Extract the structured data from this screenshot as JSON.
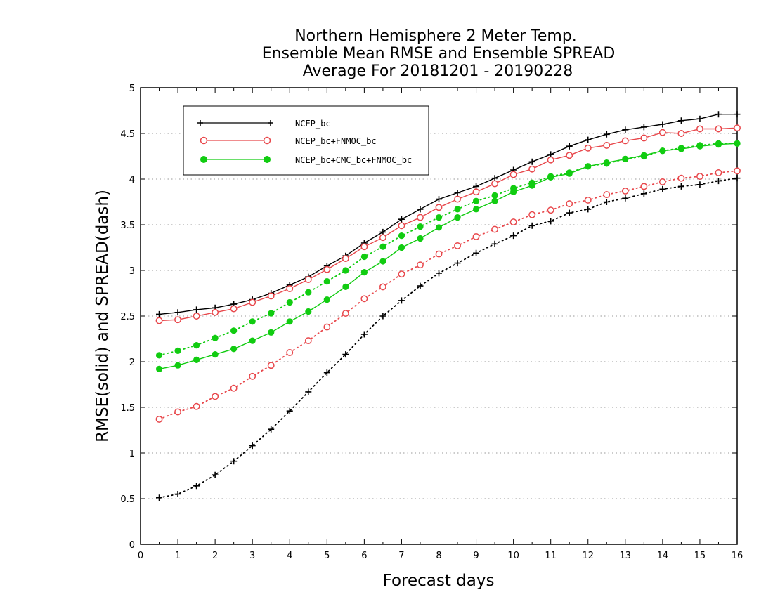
{
  "chart_data": {
    "type": "line",
    "title_lines": [
      "Northern Hemisphere 2 Meter Temp.",
      "Ensemble Mean RMSE and Ensemble SPREAD",
      "Average For 20181201 - 20190228"
    ],
    "xlabel": "Forecast days",
    "ylabel": "RMSE(solid) and SPREAD(dash)",
    "xlim": [
      0,
      16
    ],
    "ylim": [
      0,
      5
    ],
    "xticks": [
      "0",
      "1",
      "2",
      "3",
      "4",
      "5",
      "6",
      "7",
      "8",
      "9",
      "10",
      "11",
      "12",
      "13",
      "14",
      "15",
      "16"
    ],
    "yticks": [
      "0",
      "0.5",
      "1",
      "1.5",
      "2",
      "2.5",
      "3",
      "3.5",
      "4",
      "4.5",
      "5"
    ],
    "grid": "horizontal dotted",
    "legend_position": "top-left",
    "x": [
      0.5,
      1,
      1.5,
      2,
      2.5,
      3,
      3.5,
      4,
      4.5,
      5,
      5.5,
      6,
      6.5,
      7,
      7.5,
      8,
      8.5,
      9,
      9.5,
      10,
      10.5,
      11,
      11.5,
      12,
      12.5,
      13,
      13.5,
      14,
      14.5,
      15,
      15.5,
      16
    ],
    "series": [
      {
        "name": "NCEP_bc",
        "color": "#000000",
        "marker": "plus",
        "rmse": [
          2.52,
          2.54,
          2.57,
          2.59,
          2.63,
          2.68,
          2.75,
          2.84,
          2.93,
          3.05,
          3.16,
          3.3,
          3.42,
          3.56,
          3.67,
          3.78,
          3.85,
          3.92,
          4.01,
          4.1,
          4.19,
          4.27,
          4.36,
          4.43,
          4.49,
          4.54,
          4.57,
          4.6,
          4.64,
          4.66,
          4.71,
          4.71
        ],
        "spread": [
          0.51,
          0.55,
          0.64,
          0.76,
          0.91,
          1.08,
          1.26,
          1.46,
          1.67,
          1.88,
          2.08,
          2.3,
          2.5,
          2.67,
          2.83,
          2.97,
          3.08,
          3.19,
          3.29,
          3.38,
          3.49,
          3.54,
          3.63,
          3.67,
          3.75,
          3.79,
          3.84,
          3.89,
          3.92,
          3.94,
          3.98,
          4.01
        ]
      },
      {
        "name": "NCEP_bc+FNMOC_bc",
        "color": "#e8474b",
        "marker": "open-circle",
        "rmse": [
          2.45,
          2.46,
          2.5,
          2.54,
          2.58,
          2.65,
          2.72,
          2.8,
          2.9,
          3.01,
          3.13,
          3.26,
          3.36,
          3.49,
          3.58,
          3.69,
          3.78,
          3.86,
          3.95,
          4.05,
          4.11,
          4.21,
          4.26,
          4.34,
          4.37,
          4.42,
          4.45,
          4.51,
          4.5,
          4.55,
          4.55,
          4.56
        ],
        "spread": [
          1.37,
          1.45,
          1.51,
          1.62,
          1.71,
          1.84,
          1.96,
          2.1,
          2.23,
          2.38,
          2.53,
          2.69,
          2.82,
          2.96,
          3.06,
          3.18,
          3.27,
          3.37,
          3.45,
          3.53,
          3.61,
          3.66,
          3.73,
          3.77,
          3.83,
          3.87,
          3.92,
          3.97,
          4.01,
          4.03,
          4.07,
          4.09
        ]
      },
      {
        "name": "NCEP_bc+CMC_bc+FNMOC_bc",
        "color": "#11cc11",
        "marker": "filled-circle",
        "rmse": [
          1.92,
          1.96,
          2.02,
          2.08,
          2.14,
          2.23,
          2.32,
          2.44,
          2.55,
          2.68,
          2.82,
          2.98,
          3.1,
          3.25,
          3.35,
          3.47,
          3.58,
          3.67,
          3.76,
          3.86,
          3.93,
          4.02,
          4.06,
          4.14,
          4.18,
          4.22,
          4.26,
          4.31,
          4.33,
          4.36,
          4.38,
          4.39
        ],
        "spread": [
          2.07,
          2.12,
          2.18,
          2.26,
          2.34,
          2.44,
          2.53,
          2.65,
          2.76,
          2.88,
          3.0,
          3.15,
          3.26,
          3.38,
          3.48,
          3.58,
          3.67,
          3.76,
          3.82,
          3.9,
          3.96,
          4.03,
          4.07,
          4.14,
          4.17,
          4.22,
          4.25,
          4.31,
          4.34,
          4.37,
          4.39,
          4.39
        ]
      }
    ]
  }
}
